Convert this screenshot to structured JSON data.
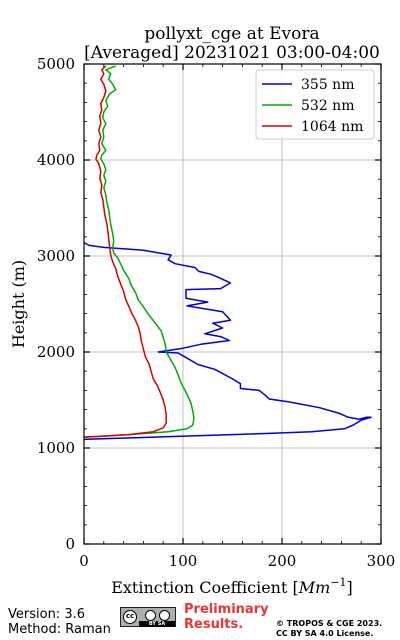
{
  "chart_data": {
    "type": "line",
    "title": "pollyxt_cge at Evora",
    "subtitle": "[Averaged] 20231021 03:00-04:00",
    "xlabel": "Extinction Coefficient",
    "xlabel_unit": "Mm",
    "xlabel_unit_exp": "−1",
    "ylabel": "Height (m)",
    "xlim": [
      0,
      300
    ],
    "ylim": [
      0,
      5000
    ],
    "xticks": [
      0,
      100,
      200,
      300
    ],
    "yticks": [
      0,
      1000,
      2000,
      3000,
      4000,
      5000
    ],
    "grid": true,
    "legend_position": "top-right",
    "series": [
      {
        "name": "355 nm",
        "color": "#0000dd",
        "points": [
          [
            0,
            3140
          ],
          [
            5,
            3110
          ],
          [
            20,
            3090
          ],
          [
            60,
            3060
          ],
          [
            88,
            3010
          ],
          [
            85,
            2960
          ],
          [
            92,
            2920
          ],
          [
            112,
            2880
          ],
          [
            116,
            2840
          ],
          [
            128,
            2810
          ],
          [
            135,
            2780
          ],
          [
            148,
            2720
          ],
          [
            138,
            2660
          ],
          [
            103,
            2650
          ],
          [
            103,
            2560
          ],
          [
            125,
            2520
          ],
          [
            104,
            2480
          ],
          [
            140,
            2420
          ],
          [
            148,
            2330
          ],
          [
            130,
            2300
          ],
          [
            140,
            2250
          ],
          [
            122,
            2190
          ],
          [
            138,
            2160
          ],
          [
            147,
            2120
          ],
          [
            118,
            2080
          ],
          [
            100,
            2040
          ],
          [
            75,
            2000
          ],
          [
            95,
            1990
          ],
          [
            100,
            1960
          ],
          [
            115,
            1870
          ],
          [
            132,
            1820
          ],
          [
            150,
            1720
          ],
          [
            158,
            1670
          ],
          [
            158,
            1620
          ],
          [
            177,
            1600
          ],
          [
            183,
            1550
          ],
          [
            187,
            1510
          ],
          [
            207,
            1480
          ],
          [
            238,
            1420
          ],
          [
            258,
            1360
          ],
          [
            267,
            1320
          ],
          [
            278,
            1300
          ],
          [
            285,
            1320
          ],
          [
            290,
            1320
          ],
          [
            280,
            1290
          ],
          [
            272,
            1240
          ],
          [
            263,
            1200
          ],
          [
            230,
            1170
          ],
          [
            180,
            1150
          ],
          [
            90,
            1120
          ],
          [
            30,
            1100
          ],
          [
            0,
            1090
          ]
        ]
      },
      {
        "name": "532 nm",
        "color": "#00aa00",
        "points": [
          [
            32,
            4980
          ],
          [
            22,
            4940
          ],
          [
            27,
            4900
          ],
          [
            25,
            4840
          ],
          [
            29,
            4790
          ],
          [
            32,
            4730
          ],
          [
            26,
            4690
          ],
          [
            22,
            4620
          ],
          [
            24,
            4560
          ],
          [
            20,
            4500
          ],
          [
            19,
            4440
          ],
          [
            22,
            4380
          ],
          [
            19,
            4310
          ],
          [
            20,
            4240
          ],
          [
            18,
            4170
          ],
          [
            22,
            4100
          ],
          [
            18,
            4050
          ],
          [
            17,
            4010
          ],
          [
            20,
            3960
          ],
          [
            22,
            3900
          ],
          [
            20,
            3840
          ],
          [
            22,
            3780
          ],
          [
            20,
            3710
          ],
          [
            22,
            3640
          ],
          [
            23,
            3560
          ],
          [
            25,
            3480
          ],
          [
            26,
            3400
          ],
          [
            27,
            3330
          ],
          [
            29,
            3230
          ],
          [
            30,
            3160
          ],
          [
            29,
            3080
          ],
          [
            30,
            3030
          ],
          [
            34,
            2980
          ],
          [
            37,
            2920
          ],
          [
            40,
            2850
          ],
          [
            45,
            2770
          ],
          [
            48,
            2690
          ],
          [
            52,
            2620
          ],
          [
            55,
            2540
          ],
          [
            60,
            2470
          ],
          [
            66,
            2380
          ],
          [
            72,
            2300
          ],
          [
            78,
            2220
          ],
          [
            80,
            2150
          ],
          [
            82,
            2080
          ],
          [
            83,
            2000
          ],
          [
            87,
            1930
          ],
          [
            92,
            1840
          ],
          [
            95,
            1760
          ],
          [
            98,
            1680
          ],
          [
            103,
            1580
          ],
          [
            108,
            1470
          ],
          [
            110,
            1380
          ],
          [
            111,
            1310
          ],
          [
            110,
            1240
          ],
          [
            104,
            1200
          ],
          [
            85,
            1170
          ],
          [
            45,
            1140
          ],
          [
            12,
            1120
          ],
          [
            0,
            1110
          ]
        ]
      },
      {
        "name": "1064 nm",
        "color": "#dd0000",
        "points": [
          [
            22,
            4980
          ],
          [
            18,
            4940
          ],
          [
            20,
            4900
          ],
          [
            17,
            4840
          ],
          [
            20,
            4790
          ],
          [
            22,
            4720
          ],
          [
            20,
            4650
          ],
          [
            17,
            4590
          ],
          [
            18,
            4520
          ],
          [
            16,
            4460
          ],
          [
            17,
            4380
          ],
          [
            15,
            4310
          ],
          [
            17,
            4240
          ],
          [
            15,
            4170
          ],
          [
            16,
            4100
          ],
          [
            13,
            4050
          ],
          [
            12,
            4010
          ],
          [
            15,
            3960
          ],
          [
            17,
            3880
          ],
          [
            16,
            3810
          ],
          [
            18,
            3740
          ],
          [
            17,
            3660
          ],
          [
            19,
            3590
          ],
          [
            20,
            3510
          ],
          [
            21,
            3430
          ],
          [
            23,
            3340
          ],
          [
            24,
            3260
          ],
          [
            25,
            3170
          ],
          [
            26,
            3090
          ],
          [
            27,
            3010
          ],
          [
            29,
            2940
          ],
          [
            32,
            2870
          ],
          [
            34,
            2790
          ],
          [
            37,
            2710
          ],
          [
            40,
            2630
          ],
          [
            42,
            2550
          ],
          [
            45,
            2480
          ],
          [
            48,
            2410
          ],
          [
            52,
            2330
          ],
          [
            55,
            2260
          ],
          [
            57,
            2180
          ],
          [
            58,
            2110
          ],
          [
            60,
            2030
          ],
          [
            62,
            1950
          ],
          [
            66,
            1870
          ],
          [
            68,
            1790
          ],
          [
            70,
            1720
          ],
          [
            74,
            1650
          ],
          [
            77,
            1580
          ],
          [
            80,
            1500
          ],
          [
            82,
            1420
          ],
          [
            83,
            1340
          ],
          [
            83,
            1260
          ],
          [
            80,
            1210
          ],
          [
            70,
            1170
          ],
          [
            45,
            1140
          ],
          [
            15,
            1120
          ],
          [
            0,
            1115
          ]
        ]
      }
    ]
  },
  "footer": {
    "version": "Version: 3.6",
    "method": "Method: Raman",
    "preliminary_line1": "Preliminary",
    "preliminary_line2": "Results.",
    "preliminary_color": "#ee3333",
    "copyright_line1": "© TROPOS & CGE 2023.",
    "copyright_line2": "CC BY SA 4.0 License.",
    "license_badge_text": "BY SA",
    "license_icons": [
      "cc-icon",
      "by-icon",
      "sa-icon"
    ]
  }
}
